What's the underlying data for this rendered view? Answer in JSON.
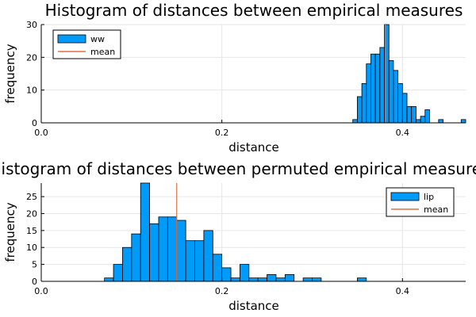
{
  "chart_data": [
    {
      "type": "bar",
      "title": "Histogram of distances between empirical measures",
      "xlabel": "distance",
      "ylabel": "frequency",
      "xlim": [
        0.0,
        0.47
      ],
      "ylim": [
        0,
        30
      ],
      "xticks": [
        0.0,
        0.2,
        0.4
      ],
      "xtick_labels": [
        "0.0",
        "0.2",
        "0.4"
      ],
      "yticks": [
        0,
        10,
        20,
        30
      ],
      "ytick_labels": [
        "0",
        "10",
        "20",
        "30"
      ],
      "bin_width": 0.005,
      "bins": [
        {
          "x": 0.345,
          "y": 1
        },
        {
          "x": 0.35,
          "y": 8
        },
        {
          "x": 0.355,
          "y": 12
        },
        {
          "x": 0.36,
          "y": 18
        },
        {
          "x": 0.365,
          "y": 21
        },
        {
          "x": 0.37,
          "y": 21
        },
        {
          "x": 0.375,
          "y": 23
        },
        {
          "x": 0.38,
          "y": 30
        },
        {
          "x": 0.385,
          "y": 19
        },
        {
          "x": 0.39,
          "y": 16
        },
        {
          "x": 0.395,
          "y": 12
        },
        {
          "x": 0.4,
          "y": 9
        },
        {
          "x": 0.405,
          "y": 5
        },
        {
          "x": 0.41,
          "y": 5
        },
        {
          "x": 0.415,
          "y": 1
        },
        {
          "x": 0.42,
          "y": 2
        },
        {
          "x": 0.425,
          "y": 4
        },
        {
          "x": 0.44,
          "y": 1
        },
        {
          "x": 0.465,
          "y": 1
        }
      ],
      "mean": 0.381,
      "legend": {
        "position": "top-left",
        "entries": [
          "ww",
          "mean"
        ]
      },
      "bar_color": "#009af9",
      "mean_color": "#e26f46",
      "grid": true
    },
    {
      "type": "bar",
      "title": "Histogram of distances between permuted empirical measures",
      "xlabel": "distance",
      "ylabel": "frequency",
      "xlim": [
        0.0,
        0.47
      ],
      "ylim": [
        0,
        29
      ],
      "xticks": [
        0.0,
        0.2,
        0.4
      ],
      "xtick_labels": [
        "0.0",
        "0.2",
        "0.4"
      ],
      "yticks": [
        0,
        5,
        10,
        15,
        20,
        25
      ],
      "ytick_labels": [
        "0",
        "5",
        "10",
        "15",
        "20",
        "25"
      ],
      "bin_width": 0.01,
      "bins": [
        {
          "x": 0.07,
          "y": 1
        },
        {
          "x": 0.08,
          "y": 5
        },
        {
          "x": 0.09,
          "y": 10
        },
        {
          "x": 0.1,
          "y": 14
        },
        {
          "x": 0.11,
          "y": 29
        },
        {
          "x": 0.12,
          "y": 17
        },
        {
          "x": 0.13,
          "y": 19
        },
        {
          "x": 0.14,
          "y": 19
        },
        {
          "x": 0.15,
          "y": 18
        },
        {
          "x": 0.16,
          "y": 12
        },
        {
          "x": 0.17,
          "y": 12
        },
        {
          "x": 0.18,
          "y": 15
        },
        {
          "x": 0.19,
          "y": 8
        },
        {
          "x": 0.2,
          "y": 4
        },
        {
          "x": 0.21,
          "y": 1
        },
        {
          "x": 0.22,
          "y": 5
        },
        {
          "x": 0.23,
          "y": 1
        },
        {
          "x": 0.24,
          "y": 1
        },
        {
          "x": 0.25,
          "y": 2
        },
        {
          "x": 0.26,
          "y": 1
        },
        {
          "x": 0.27,
          "y": 2
        },
        {
          "x": 0.29,
          "y": 1
        },
        {
          "x": 0.3,
          "y": 1
        },
        {
          "x": 0.35,
          "y": 1
        }
      ],
      "mean": 0.15,
      "legend": {
        "position": "top-right",
        "entries": [
          "lip",
          "mean"
        ]
      },
      "bar_color": "#009af9",
      "mean_color": "#e26f46",
      "grid": true
    }
  ]
}
